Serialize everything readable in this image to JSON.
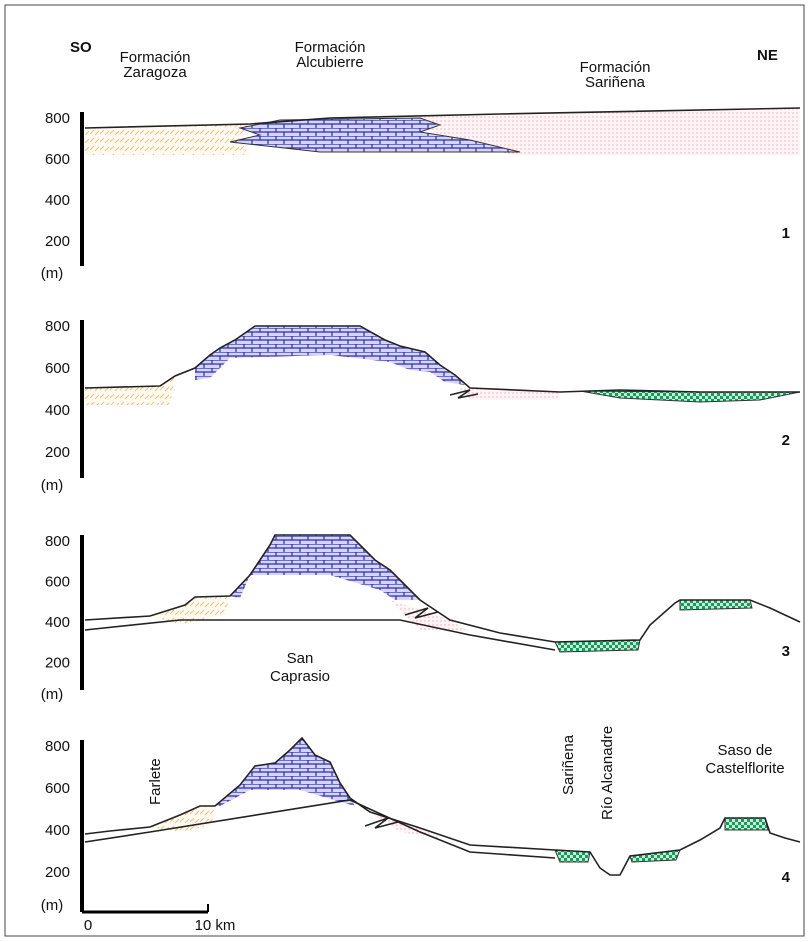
{
  "header": {
    "left": "SO",
    "right": "NE"
  },
  "formations": [
    {
      "lines": [
        "Formación",
        "Zaragoza"
      ]
    },
    {
      "lines": [
        "Formación",
        "Alcubierre"
      ]
    },
    {
      "lines": [
        "Formación",
        "Sariñena"
      ]
    }
  ],
  "panels": [
    {
      "number": "1",
      "ticks": [
        "800",
        "600",
        "400",
        "200"
      ],
      "unit": "(m)"
    },
    {
      "number": "2",
      "ticks": [
        "800",
        "600",
        "400",
        "200"
      ],
      "unit": "(m)"
    },
    {
      "number": "3",
      "ticks": [
        "800",
        "600",
        "400",
        "200"
      ],
      "unit": "(m)"
    },
    {
      "number": "4",
      "ticks": [
        "800",
        "600",
        "400",
        "200"
      ],
      "unit": "(m)"
    }
  ],
  "places": {
    "san_caprasio": [
      "San",
      "Caprasio"
    ],
    "farlete": "Farlete",
    "sarinena": "Sariñena",
    "rio": "Río Alcanadre",
    "saso": [
      "Saso de",
      "Castelflorite"
    ]
  },
  "scale": {
    "start": "0",
    "end": "10 km"
  }
}
